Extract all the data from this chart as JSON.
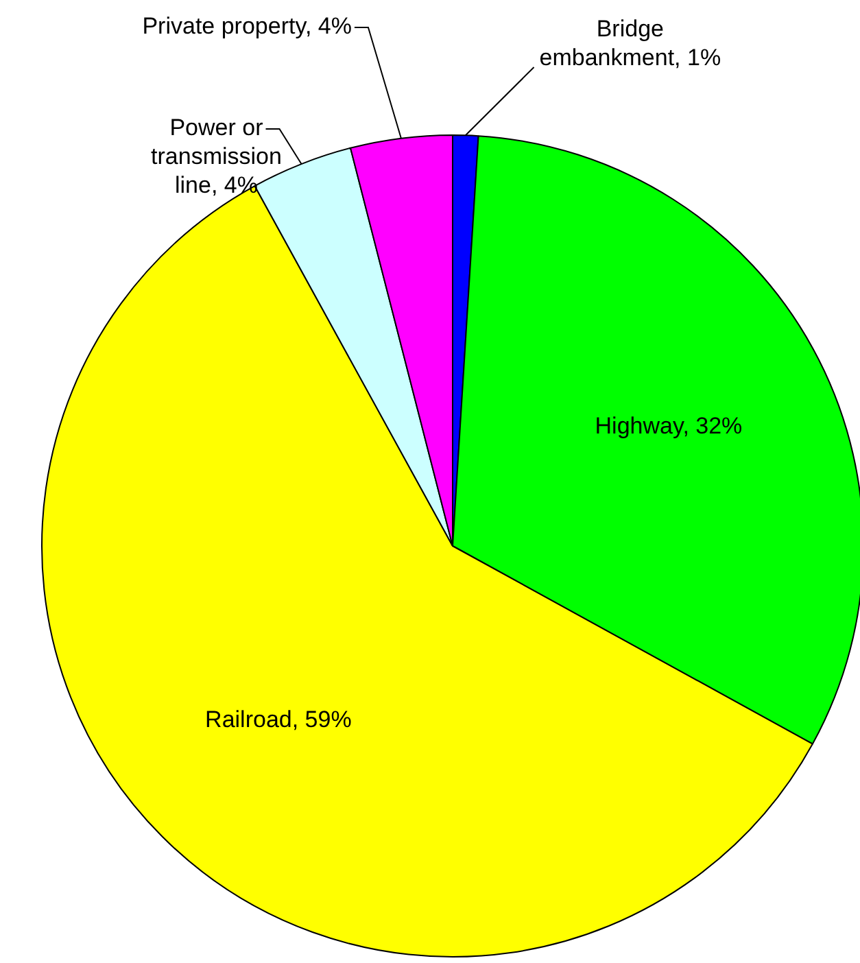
{
  "chart_data": {
    "type": "pie",
    "categories": [
      "Bridge embankment",
      "Highway",
      "Railroad",
      "Power or transmission line",
      "Private property"
    ],
    "values": [
      1,
      32,
      59,
      4,
      4
    ],
    "value_labels": [
      "1%",
      "32%",
      "59%",
      "4%",
      "4%"
    ],
    "colors": [
      "#0000ff",
      "#00ff00",
      "#ffff00",
      "#ccffff",
      "#ff00ff"
    ],
    "legend": false
  }
}
